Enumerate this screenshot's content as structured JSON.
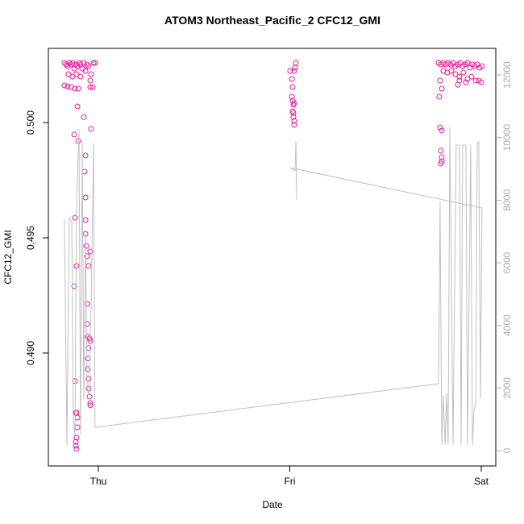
{
  "chart_data": {
    "type": "scatter",
    "title": "ATOM3 Northeast_Pacific_2 CFC12_GMI",
    "xlabel": "Date",
    "ylabel": "CFC12_GMI",
    "xlim": [
      -0.261,
      2.076
    ],
    "ylim": [
      0.4851,
      0.50322
    ],
    "y2lim": [
      -489,
      12850
    ],
    "xticks": [
      {
        "value": 0,
        "label": "Thu"
      },
      {
        "value": 1,
        "label": "Fri"
      },
      {
        "value": 2,
        "label": "Sat"
      }
    ],
    "yticks": [
      {
        "value": 0.49,
        "label": "0.490"
      },
      0.495,
      {
        "value": 0.5,
        "label": "0.500"
      }
    ],
    "y2ticks": [
      0,
      2000,
      4000,
      6000,
      8000,
      10000,
      12000
    ],
    "series": [
      {
        "type": "scatter",
        "color": "#e8199b",
        "x": [
          -0.177,
          -0.168,
          -0.16,
          -0.152,
          -0.143,
          -0.135,
          -0.126,
          -0.118,
          -0.109,
          -0.101,
          -0.093,
          -0.084,
          -0.076,
          -0.067,
          -0.059,
          -0.051,
          -0.156,
          -0.135,
          -0.114,
          -0.093,
          -0.177,
          -0.16,
          -0.143,
          -0.122,
          -0.105,
          -0.042,
          -0.029,
          -0.025,
          -0.017,
          -0.038,
          -0.042,
          -0.109,
          -0.076,
          -0.038,
          -0.126,
          -0.105,
          -0.067,
          -0.072,
          -0.067,
          -0.067,
          -0.067,
          -0.063,
          -0.059,
          -0.051,
          -0.042,
          -0.122,
          -0.114,
          -0.126,
          -0.059,
          -0.059,
          -0.055,
          -0.051,
          -0.046,
          -0.042,
          -0.055,
          -0.055,
          -0.051,
          -0.051,
          -0.046,
          -0.042,
          -0.042,
          -0.122,
          -0.118,
          -0.109,
          -0.109,
          -0.114,
          -0.118,
          -0.118,
          -0.114,
          -0.114,
          1.032,
          1.027,
          1.023,
          1.002,
          1.011,
          1.015,
          1.011,
          1.015,
          1.019,
          1.023,
          1.015,
          1.019,
          1.023,
          1.023,
          1.019,
          1.777,
          1.789,
          1.802,
          1.815,
          1.827,
          1.84,
          1.853,
          1.865,
          1.878,
          1.891,
          1.903,
          1.916,
          1.928,
          1.941,
          1.954,
          1.966,
          1.979,
          1.992,
          2.004,
          1.802,
          1.823,
          1.844,
          1.865,
          1.886,
          1.907,
          1.928,
          1.949,
          1.971,
          1.987,
          2.0,
          1.785,
          1.794,
          1.878,
          1.886,
          1.92,
          1.781,
          1.785,
          1.794,
          1.789,
          1.794,
          1.794,
          1.789
        ],
        "values": [
          0.50259,
          0.50252,
          0.50245,
          0.50259,
          0.50252,
          0.50259,
          0.50234,
          0.50252,
          0.50245,
          0.50259,
          0.50252,
          0.50234,
          0.50259,
          0.50224,
          0.50252,
          0.50245,
          0.5021,
          0.50199,
          0.5021,
          0.50199,
          0.50161,
          0.50157,
          0.50154,
          0.50147,
          0.50147,
          0.50154,
          0.50154,
          0.50259,
          0.50259,
          0.5021,
          0.50182,
          0.5007,
          0.50024,
          0.49972,
          0.49948,
          0.4992,
          0.49857,
          0.49787,
          0.49675,
          0.49577,
          0.49517,
          0.49465,
          0.4942,
          0.49378,
          0.49441,
          0.49587,
          0.49378,
          0.4929,
          0.49213,
          0.49126,
          0.4907,
          0.49021,
          0.49063,
          0.49052,
          0.48976,
          0.4893,
          0.48888,
          0.48846,
          0.48811,
          0.48783,
          0.48773,
          0.48878,
          0.48741,
          0.4872,
          0.48678,
          0.48633,
          0.48615,
          0.48598,
          0.48584,
          0.48741,
          0.50259,
          0.50238,
          0.50224,
          0.50224,
          0.50189,
          0.50154,
          0.50112,
          0.50094,
          0.50077,
          0.50084,
          0.50049,
          0.50024,
          0.50007,
          0.4999,
          0.50042,
          0.50259,
          0.50252,
          0.50259,
          0.50252,
          0.50259,
          0.50252,
          0.50259,
          0.50245,
          0.50252,
          0.50259,
          0.50245,
          0.50252,
          0.50259,
          0.50238,
          0.50252,
          0.50245,
          0.50252,
          0.50238,
          0.50245,
          0.50224,
          0.50217,
          0.50224,
          0.5021,
          0.50199,
          0.50217,
          0.50189,
          0.50199,
          0.50182,
          0.50182,
          0.50175,
          0.50182,
          0.50147,
          0.50164,
          0.50182,
          0.50175,
          0.50112,
          0.49979,
          0.49965,
          0.49878,
          0.4985,
          0.49832,
          0.49822
        ]
      },
      {
        "type": "line",
        "color": "#c0c0c0",
        "axis": "y2",
        "x": [
          -0.177,
          -0.164,
          -0.152,
          -0.139,
          -0.131,
          -0.122,
          -0.114,
          -0.101,
          -0.093,
          -0.084,
          -0.076,
          -0.067,
          -0.059,
          -0.051,
          -0.038,
          -0.025,
          -0.017,
          1.777,
          1.785,
          1.794,
          1.802,
          1.811,
          1.819,
          1.827,
          1.836,
          1.853,
          1.869,
          1.886,
          1.895,
          1.903,
          1.92,
          1.928,
          1.945,
          1.954,
          1.962,
          1.971,
          1.979,
          1.987,
          1.996,
          2.004,
          1.002,
          1.027,
          1.032,
          1.036
        ],
        "values": [
          7365,
          180,
          7442,
          7313,
          1004,
          489,
          7828,
          10274,
          489,
          9888,
          1648,
          6927,
          2034,
          1777,
          4609,
          9759,
          747,
          2137,
          7957,
          180,
          1777,
          180,
          1828,
          180,
          10326,
          180,
          9759,
          9759,
          180,
          9759,
          9759,
          180,
          9759,
          180,
          1262,
          1519,
          9811,
          9862,
          1674,
          7751,
          9038,
          8935,
          9888,
          8008
        ]
      }
    ]
  }
}
